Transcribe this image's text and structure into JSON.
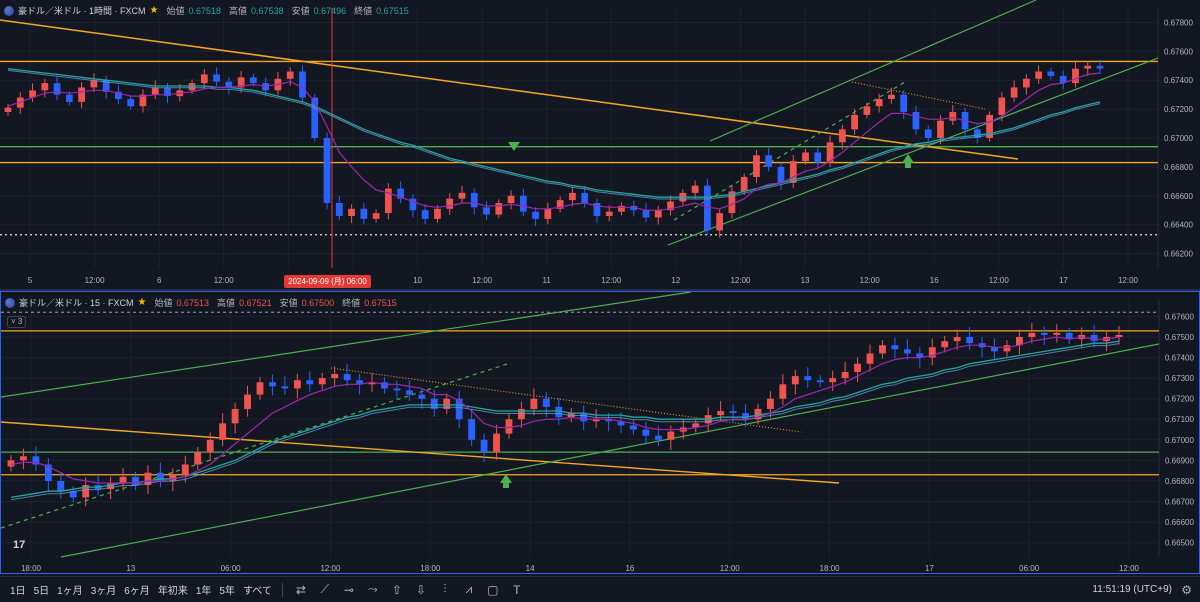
{
  "top_legend": {
    "symbol": "豪ドル／米ドル · 1時間 · FXCM",
    "open_label": "始値",
    "open": "0.67518",
    "high_label": "高値",
    "high": "0.67538",
    "low_label": "安値",
    "low": "0.67496",
    "close_label": "終値",
    "close": "0.67515"
  },
  "bottom_legend": {
    "symbol": "豪ドル／米ドル · 15 · FXCM",
    "open_label": "始値",
    "open": "0.67513",
    "high_label": "高値",
    "high": "0.67521",
    "low_label": "安値",
    "low": "0.67500",
    "close_label": "終値",
    "close": "0.67515",
    "indicator_pill": "3"
  },
  "crosshair_date_label": "2024-09-09 (月)  06:00",
  "toolbar": {
    "timeframes": [
      "1日",
      "5日",
      "1ヶ月",
      "3ヶ月",
      "6ヶ月",
      "年初来",
      "1年",
      "5年",
      "すべて"
    ],
    "clock": "11:51:19 (UTC+9)",
    "tools": [
      "calendar-icon",
      "trendline-icon",
      "horizontal-ray-icon",
      "path-icon",
      "arrow-up-icon",
      "arrow-down-icon",
      "vertical-line-icon",
      "pattern-icon",
      "rectangle-icon",
      "text-icon"
    ]
  },
  "colors": {
    "up": "#ef5350",
    "down": "#2962ff",
    "ma_fast": "#9c27b0",
    "ma_teal": "#26a69a",
    "ma_blue": "#5b9bd5",
    "orange": "#f5a623",
    "green": "#4caf50",
    "grid": "#1e222d"
  },
  "chart_data": [
    {
      "type": "candlestick",
      "title": "豪ドル／米ドル · 1時間 · FXCM",
      "x_ticks": [
        "5",
        "12:00",
        "6",
        "12:00",
        "9",
        "12:00",
        "10",
        "12:00",
        "11",
        "12:00",
        "12",
        "12:00",
        "13",
        "12:00",
        "16",
        "12:00",
        "17",
        "12:00"
      ],
      "y_ticks": [
        0.678,
        0.676,
        0.674,
        0.672,
        0.67,
        0.668,
        0.666,
        0.664,
        0.662
      ],
      "ylim": [
        0.661,
        0.679
      ],
      "horizontal_levels": [
        {
          "price": 0.6753,
          "color": "orange"
        },
        {
          "price": 0.6694,
          "color": "green"
        },
        {
          "price": 0.6683,
          "color": "orange"
        },
        {
          "price": 0.6633,
          "color": "white-dotted"
        }
      ],
      "closes": [
        0.6721,
        0.6728,
        0.6733,
        0.6738,
        0.673,
        0.6725,
        0.6735,
        0.674,
        0.6732,
        0.6727,
        0.6722,
        0.673,
        0.6735,
        0.6729,
        0.6733,
        0.6738,
        0.6744,
        0.6739,
        0.6735,
        0.6742,
        0.6738,
        0.6733,
        0.6741,
        0.6746,
        0.6728,
        0.67,
        0.6655,
        0.6646,
        0.6651,
        0.6644,
        0.6648,
        0.6665,
        0.6658,
        0.665,
        0.6644,
        0.6651,
        0.6658,
        0.6662,
        0.6652,
        0.6647,
        0.6655,
        0.666,
        0.6649,
        0.6644,
        0.6651,
        0.6657,
        0.6662,
        0.6655,
        0.6646,
        0.6649,
        0.6653,
        0.665,
        0.6645,
        0.665,
        0.6656,
        0.6662,
        0.6667,
        0.6636,
        0.6648,
        0.6663,
        0.6673,
        0.6688,
        0.668,
        0.6669,
        0.6684,
        0.669,
        0.6683,
        0.6697,
        0.6706,
        0.6716,
        0.6722,
        0.6727,
        0.673,
        0.6718,
        0.6706,
        0.67,
        0.6712,
        0.6718,
        0.6706,
        0.67,
        0.6716,
        0.6728,
        0.6735,
        0.6741,
        0.6746,
        0.6743,
        0.6738,
        0.6748,
        0.675,
        0.6748
      ],
      "ma_fast": [
        0.6722,
        0.6725,
        0.6728,
        0.6731,
        0.6732,
        0.6731,
        0.6732,
        0.6733,
        0.6733,
        0.6731,
        0.6729,
        0.6729,
        0.673,
        0.673,
        0.6731,
        0.6732,
        0.6734,
        0.6735,
        0.6735,
        0.6736,
        0.6737,
        0.6736,
        0.6737,
        0.6739,
        0.6735,
        0.6725,
        0.6708,
        0.669,
        0.668,
        0.6671,
        0.6664,
        0.6662,
        0.6659,
        0.6656,
        0.6653,
        0.6652,
        0.6653,
        0.6655,
        0.6655,
        0.6653,
        0.6653,
        0.6654,
        0.6653,
        0.6651,
        0.6651,
        0.6652,
        0.6654,
        0.6655,
        0.6653,
        0.6652,
        0.6652,
        0.6652,
        0.665,
        0.665,
        0.6651,
        0.6653,
        0.6655,
        0.6652,
        0.6651,
        0.6654,
        0.6658,
        0.6665,
        0.6668,
        0.6669,
        0.6673,
        0.6677,
        0.6679,
        0.6684,
        0.669,
        0.6697,
        0.6704,
        0.6711,
        0.6717,
        0.6717,
        0.6715,
        0.6713,
        0.6713,
        0.6714,
        0.6712,
        0.671,
        0.6711,
        0.6715,
        0.6721,
        0.6727,
        0.6733,
        0.6737,
        0.6738,
        0.6741,
        0.6744,
        0.6745
      ],
      "ma_teal": [
        0.6748,
        0.6747,
        0.6746,
        0.6745,
        0.6744,
        0.6743,
        0.6742,
        0.6741,
        0.674,
        0.6739,
        0.6738,
        0.6737,
        0.6736,
        0.6736,
        0.6736,
        0.6736,
        0.6736,
        0.6735,
        0.6735,
        0.6734,
        0.6733,
        0.6731,
        0.6729,
        0.6727,
        0.6725,
        0.6722,
        0.6718,
        0.6714,
        0.671,
        0.6706,
        0.6703,
        0.67,
        0.6697,
        0.6695,
        0.6692,
        0.6689,
        0.6686,
        0.6684,
        0.6682,
        0.668,
        0.6678,
        0.6676,
        0.6674,
        0.6672,
        0.667,
        0.6669,
        0.6667,
        0.6666,
        0.6664,
        0.6663,
        0.6662,
        0.6661,
        0.666,
        0.6659,
        0.6659,
        0.6659,
        0.6659,
        0.6659,
        0.666,
        0.6661,
        0.6663,
        0.6665,
        0.6667,
        0.6669,
        0.6671,
        0.6673,
        0.6675,
        0.6678,
        0.668,
        0.6683,
        0.6686,
        0.6689,
        0.6692,
        0.6694,
        0.6696,
        0.6697,
        0.6699,
        0.67,
        0.6701,
        0.6702,
        0.6703,
        0.6705,
        0.6707,
        0.671,
        0.6713,
        0.6716,
        0.6718,
        0.6721,
        0.6723,
        0.6725
      ]
    },
    {
      "type": "candlestick",
      "title": "豪ドル／米ドル · 15 · FXCM",
      "x_ticks": [
        "18:00",
        "13",
        "06:00",
        "12:00",
        "18:00",
        "14",
        "16",
        "12:00",
        "18:00",
        "17",
        "06:00",
        "12:00"
      ],
      "y_ticks": [
        0.676,
        0.675,
        0.674,
        0.673,
        0.672,
        0.671,
        0.67,
        0.669,
        0.668,
        0.667,
        0.666,
        0.665
      ],
      "ylim": [
        0.6643,
        0.6768
      ],
      "horizontal_levels": [
        {
          "price": 0.6753,
          "color": "orange"
        },
        {
          "price": 0.6694,
          "color": "green"
        },
        {
          "price": 0.6683,
          "color": "orange"
        },
        {
          "price": 0.6762,
          "color": "gray-dashed"
        }
      ],
      "closes": [
        0.669,
        0.6692,
        0.6688,
        0.668,
        0.6675,
        0.6672,
        0.6678,
        0.6676,
        0.6679,
        0.6682,
        0.6678,
        0.6684,
        0.668,
        0.6683,
        0.6688,
        0.6694,
        0.67,
        0.6708,
        0.6715,
        0.6722,
        0.6728,
        0.6726,
        0.6725,
        0.6729,
        0.6727,
        0.673,
        0.6732,
        0.6729,
        0.6727,
        0.6728,
        0.6725,
        0.6724,
        0.6722,
        0.672,
        0.6715,
        0.672,
        0.671,
        0.67,
        0.6694,
        0.6703,
        0.671,
        0.6715,
        0.672,
        0.6716,
        0.6711,
        0.6713,
        0.6709,
        0.671,
        0.6709,
        0.6707,
        0.6705,
        0.6702,
        0.67,
        0.6704,
        0.6706,
        0.6708,
        0.6712,
        0.6714,
        0.6713,
        0.671,
        0.6715,
        0.672,
        0.6727,
        0.6731,
        0.6729,
        0.6728,
        0.673,
        0.6733,
        0.6737,
        0.6742,
        0.6746,
        0.6744,
        0.6742,
        0.674,
        0.6745,
        0.6748,
        0.675,
        0.6747,
        0.6745,
        0.6743,
        0.6746,
        0.675,
        0.6752,
        0.6751,
        0.6752,
        0.6749,
        0.6751,
        0.6748,
        0.675,
        0.6751
      ],
      "ma_fast": [
        0.6688,
        0.6689,
        0.6689,
        0.6687,
        0.6684,
        0.6681,
        0.668,
        0.6679,
        0.6679,
        0.6679,
        0.6679,
        0.668,
        0.668,
        0.6681,
        0.6682,
        0.6685,
        0.6688,
        0.6693,
        0.6698,
        0.6703,
        0.6708,
        0.6713,
        0.6716,
        0.6719,
        0.6722,
        0.6724,
        0.6726,
        0.6727,
        0.6727,
        0.6728,
        0.6727,
        0.6727,
        0.6726,
        0.6725,
        0.6722,
        0.6722,
        0.6719,
        0.6714,
        0.6708,
        0.6706,
        0.6706,
        0.6707,
        0.6709,
        0.671,
        0.671,
        0.6711,
        0.671,
        0.671,
        0.671,
        0.6709,
        0.6708,
        0.6706,
        0.6705,
        0.6705,
        0.6705,
        0.6706,
        0.6707,
        0.6709,
        0.671,
        0.671,
        0.6711,
        0.6713,
        0.6716,
        0.672,
        0.6722,
        0.6724,
        0.6726,
        0.6728,
        0.6731,
        0.6734,
        0.6737,
        0.6739,
        0.674,
        0.674,
        0.6741,
        0.6743,
        0.6745,
        0.6746,
        0.6746,
        0.6745,
        0.6745,
        0.6746,
        0.6748,
        0.6749,
        0.675,
        0.6749,
        0.675,
        0.6749,
        0.6749,
        0.675
      ],
      "ma_teal": [
        0.6672,
        0.6673,
        0.6674,
        0.6675,
        0.6675,
        0.6676,
        0.6677,
        0.6677,
        0.6678,
        0.6679,
        0.6679,
        0.668,
        0.6681,
        0.6681,
        0.6682,
        0.6684,
        0.6686,
        0.6688,
        0.669,
        0.6693,
        0.6696,
        0.6699,
        0.6701,
        0.6703,
        0.6705,
        0.6707,
        0.6709,
        0.6711,
        0.6712,
        0.6714,
        0.6715,
        0.6716,
        0.6717,
        0.6717,
        0.6717,
        0.6717,
        0.6717,
        0.6716,
        0.6715,
        0.6714,
        0.6714,
        0.6714,
        0.6714,
        0.6714,
        0.6714,
        0.6713,
        0.6713,
        0.6712,
        0.6712,
        0.6712,
        0.6711,
        0.6711,
        0.671,
        0.671,
        0.671,
        0.671,
        0.671,
        0.6711,
        0.6711,
        0.6711,
        0.6712,
        0.6713,
        0.6714,
        0.6716,
        0.6717,
        0.6718,
        0.672,
        0.6721,
        0.6723,
        0.6725,
        0.6727,
        0.6728,
        0.673,
        0.6731,
        0.6732,
        0.6734,
        0.6735,
        0.6737,
        0.6738,
        0.6739,
        0.674,
        0.6741,
        0.6742,
        0.6743,
        0.6744,
        0.6745,
        0.6746,
        0.6747,
        0.6747,
        0.6748
      ]
    }
  ]
}
